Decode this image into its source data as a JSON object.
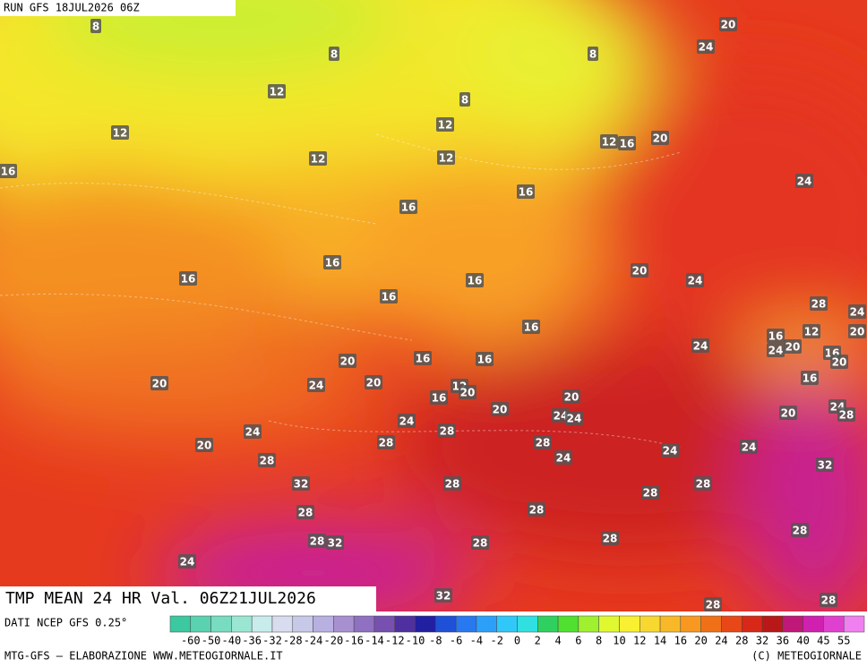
{
  "header": {
    "run": "RUN GFS 18JUL2026 06Z"
  },
  "map": {
    "title": "TMP MEAN 24 HR Val. 06Z21JUL2026",
    "contour_labels": [
      8,
      8,
      8,
      20,
      24,
      12,
      8,
      12,
      12,
      12,
      12,
      16,
      20,
      16,
      12,
      16,
      24,
      16,
      16,
      16,
      16,
      20,
      24,
      16,
      28,
      16,
      24,
      16,
      12,
      20,
      20,
      24,
      24,
      16,
      20,
      20,
      16,
      16,
      16,
      20,
      24,
      20,
      12,
      16,
      20,
      20,
      20,
      24,
      24,
      24,
      28,
      20,
      24,
      24,
      28,
      28,
      20,
      28,
      24,
      24,
      28,
      24,
      32,
      32,
      28,
      28,
      28,
      28,
      28,
      28,
      32,
      28,
      28,
      28,
      24,
      32,
      28,
      28
    ]
  },
  "footer": {
    "source": "DATI NCEP GFS 0.25°",
    "credit": "MTG-GFS — ELABORAZIONE WWW.METEOGIORNALE.IT",
    "copyright": "(C) METEOGIORNALE"
  },
  "colorbar": {
    "labels": [
      -60,
      -50,
      -40,
      -36,
      -32,
      -28,
      -24,
      -20,
      -16,
      -14,
      -12,
      -10,
      -8,
      -6,
      -4,
      -2,
      0,
      2,
      4,
      6,
      8,
      10,
      12,
      14,
      16,
      20,
      24,
      28,
      32,
      36,
      40,
      45,
      55
    ],
    "colors": [
      "#3cc8a0",
      "#5ad2b0",
      "#78dcc0",
      "#9ae6d2",
      "#c8ecec",
      "#d8dcee",
      "#c8c8e8",
      "#b8b0e0",
      "#a890d0",
      "#9070c0",
      "#7850b0",
      "#5030a0",
      "#2020a0",
      "#1e50d8",
      "#2878f0",
      "#2ca0f8",
      "#30c8f8",
      "#30e0e0",
      "#30d060",
      "#50e030",
      "#a0f030",
      "#e0f830",
      "#f8f030",
      "#f8d830",
      "#f8b828",
      "#f89820",
      "#f07018",
      "#e84818",
      "#d82818",
      "#b81818",
      "#c01878",
      "#d020b0",
      "#e040d0",
      "#f080f0"
    ]
  }
}
